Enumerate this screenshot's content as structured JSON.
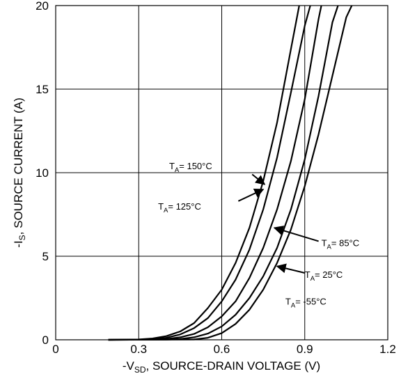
{
  "chart_data": {
    "type": "line",
    "title": "",
    "xlabel": {
      "pre": "-V",
      "sub": "SD",
      "post": ", SOURCE-DRAIN VOLTAGE (V)"
    },
    "ylabel": {
      "pre": "-I",
      "sub": "S",
      "post": ", SOURCE CURRENT (A)"
    },
    "xlim": [
      0,
      1.2
    ],
    "ylim": [
      0,
      20
    ],
    "xticks": [
      0,
      0.3,
      0.6,
      0.9,
      1.2
    ],
    "xtick_labels": [
      "0",
      "0.3",
      "0.6",
      "0.9",
      "1.2"
    ],
    "yticks": [
      0,
      5,
      10,
      15,
      20
    ],
    "ytick_labels": [
      "0",
      "5",
      "10",
      "15",
      "20"
    ],
    "grid": true,
    "line_color": "#000000",
    "series": [
      {
        "name": "T_A= 150°C",
        "label_parts": {
          "pre": "T",
          "sub": "A",
          "post": "= 150°C"
        },
        "x": [
          0.19,
          0.3,
          0.35,
          0.4,
          0.45,
          0.5,
          0.55,
          0.6,
          0.65,
          0.7,
          0.75,
          0.8,
          0.85,
          0.88
        ],
        "y": [
          0,
          0.02,
          0.08,
          0.22,
          0.5,
          1.0,
          1.9,
          3.0,
          4.6,
          6.7,
          9.5,
          13.0,
          17.4,
          20
        ]
      },
      {
        "name": "T_A= 125°C",
        "label_parts": {
          "pre": "T",
          "sub": "A",
          "post": "= 125°C"
        },
        "x": [
          0.19,
          0.3,
          0.35,
          0.4,
          0.45,
          0.5,
          0.55,
          0.6,
          0.65,
          0.7,
          0.75,
          0.8,
          0.85,
          0.9,
          0.92
        ],
        "y": [
          0,
          0.01,
          0.04,
          0.12,
          0.32,
          0.7,
          1.3,
          2.3,
          3.6,
          5.4,
          7.8,
          10.9,
          14.8,
          18.8,
          20
        ]
      },
      {
        "name": "T_A= 85°C",
        "label_parts": {
          "pre": "T",
          "sub": "A",
          "post": "= 85°C"
        },
        "x": [
          0.19,
          0.35,
          0.4,
          0.45,
          0.5,
          0.55,
          0.6,
          0.65,
          0.7,
          0.75,
          0.8,
          0.85,
          0.9,
          0.95,
          0.96
        ],
        "y": [
          0,
          0.01,
          0.05,
          0.15,
          0.35,
          0.75,
          1.4,
          2.3,
          3.7,
          5.5,
          7.8,
          10.7,
          14.4,
          19.2,
          20
        ]
      },
      {
        "name": "T_A= 25°C",
        "label_parts": {
          "pre": "T",
          "sub": "A",
          "post": "= 25°C"
        },
        "x": [
          0.19,
          0.4,
          0.45,
          0.5,
          0.55,
          0.6,
          0.65,
          0.7,
          0.75,
          0.8,
          0.85,
          0.9,
          0.95,
          1.0,
          1.02
        ],
        "y": [
          0,
          0.01,
          0.05,
          0.15,
          0.37,
          0.8,
          1.5,
          2.5,
          3.8,
          5.5,
          7.8,
          10.8,
          14.6,
          19.0,
          20
        ]
      },
      {
        "name": "T_A= -55°C",
        "label_parts": {
          "pre": "T",
          "sub": "A",
          "post": "= -55°C"
        },
        "x": [
          0.19,
          0.5,
          0.55,
          0.6,
          0.65,
          0.7,
          0.75,
          0.8,
          0.85,
          0.9,
          0.95,
          1.0,
          1.05,
          1.07
        ],
        "y": [
          0,
          0.02,
          0.12,
          0.4,
          0.95,
          1.8,
          3.0,
          4.6,
          6.6,
          9.2,
          12.3,
          15.8,
          19.3,
          20
        ]
      }
    ],
    "annotations": [
      {
        "series": 0,
        "text_x": 0.41,
        "text_y": 10.2,
        "arrow_from": [
          0.71,
          9.9
        ],
        "arrow_to": [
          0.755,
          9.3
        ],
        "anchor": "start"
      },
      {
        "series": 1,
        "text_x": 0.37,
        "text_y": 7.8,
        "arrow_from": [
          0.66,
          8.3
        ],
        "arrow_to": [
          0.75,
          9.0
        ],
        "anchor": "start"
      },
      {
        "series": 2,
        "text_x": 0.96,
        "text_y": 5.6,
        "arrow_from": [
          0.95,
          5.9
        ],
        "arrow_to": [
          0.79,
          6.7
        ],
        "anchor": "start"
      },
      {
        "series": 3,
        "text_x": 0.9,
        "text_y": 3.7,
        "arrow_from": [
          0.9,
          4.0
        ],
        "arrow_to": [
          0.8,
          4.4
        ],
        "anchor": "start"
      },
      {
        "series": 4,
        "text_x": 0.83,
        "text_y": 2.1,
        "arrow_from": null,
        "arrow_to": null,
        "anchor": "start"
      }
    ]
  }
}
